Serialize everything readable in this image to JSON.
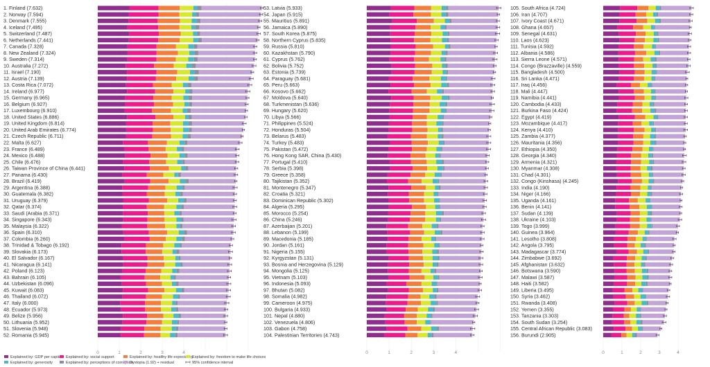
{
  "chart_data": {
    "type": "stacked-horizontal-bar",
    "title": "",
    "x_ticks": [
      "0",
      "1",
      "2",
      "3",
      "4"
    ],
    "components": [
      {
        "key": "gdp",
        "label": "Explained by: GDP per capita",
        "color": "#8e2d8e"
      },
      {
        "key": "social",
        "label": "Explained by: social support",
        "color": "#ec1a8a"
      },
      {
        "key": "health",
        "label": "Explained by: healthy life expectancy",
        "color": "#f47d3b"
      },
      {
        "key": "freedom",
        "label": "Explained by: freedom to make life choices",
        "color": "#d8e82c"
      },
      {
        "key": "generosity",
        "label": "Explained by: generosity",
        "color": "#4bb8c9"
      },
      {
        "key": "corruption",
        "label": "Explained by: perceptions of corruption",
        "color": "#8d8d9e"
      },
      {
        "key": "dystopia",
        "label": "Dystopia (1.92) + residual",
        "color": "#c3a4d6"
      }
    ],
    "ci_label": "95% confidence interval",
    "countries": [
      [
        "Finland",
        "7.632"
      ],
      [
        "Norway",
        "7.594"
      ],
      [
        "Denmark",
        "7.555"
      ],
      [
        "Iceland",
        "7.495"
      ],
      [
        "Switzerland",
        "7.487"
      ],
      [
        "Netherlands",
        "7.441"
      ],
      [
        "Canada",
        "7.328"
      ],
      [
        "New Zealand",
        "7.324"
      ],
      [
        "Sweden",
        "7.314"
      ],
      [
        "Australia",
        "7.272"
      ],
      [
        "Israel",
        "7.190"
      ],
      [
        "Austria",
        "7.139"
      ],
      [
        "Costa Rica",
        "7.072"
      ],
      [
        "Ireland",
        "6.977"
      ],
      [
        "Germany",
        "6.965"
      ],
      [
        "Belgium",
        "6.927"
      ],
      [
        "Luxembourg",
        "6.910"
      ],
      [
        "United States",
        "6.886"
      ],
      [
        "United Kingdom",
        "6.814"
      ],
      [
        "United Arab Emirates",
        "6.774"
      ],
      [
        "Czech Republic",
        "6.711"
      ],
      [
        "Malta",
        "6.627"
      ],
      [
        "France",
        "6.489"
      ],
      [
        "Mexico",
        "6.488"
      ],
      [
        "Chile",
        "6.476"
      ],
      [
        "Taiwan Province of China",
        "6.441"
      ],
      [
        "Panama",
        "6.430"
      ],
      [
        "Brazil",
        "6.419"
      ],
      [
        "Argentina",
        "6.388"
      ],
      [
        "Guatemala",
        "6.382"
      ],
      [
        "Uruguay",
        "6.379"
      ],
      [
        "Qatar",
        "6.374"
      ],
      [
        "Saudi (Arabia",
        "6.371"
      ],
      [
        "Singapore",
        "6.343"
      ],
      [
        "Malaysia",
        "6.322"
      ],
      [
        "Spain",
        "6.310"
      ],
      [
        "Colombia",
        "6.260"
      ],
      [
        "Trinidad & Tobago",
        "6.192"
      ],
      [
        "Slovakia",
        "6.173"
      ],
      [
        "El Salvador",
        "6.167"
      ],
      [
        "Nicaragua",
        "6.141"
      ],
      [
        "Poland",
        "6.123"
      ],
      [
        "Bahrain",
        "6.105"
      ],
      [
        "Uzbekistan",
        "6.096"
      ],
      [
        "Kuwait",
        "6.083"
      ],
      [
        "Thailand",
        "6.072"
      ],
      [
        "Italy",
        "6.000"
      ],
      [
        "Ecuador",
        "5.973"
      ],
      [
        "Belize",
        "5.956"
      ],
      [
        "Lithuania",
        "5.952"
      ],
      [
        "Slovenia",
        "5.948"
      ],
      [
        "Romania",
        "5.945"
      ],
      [
        "Latvia",
        "5.933"
      ],
      [
        "Japan",
        "5.915"
      ],
      [
        "Mauritius",
        "5.891"
      ],
      [
        "Jamaica",
        "5.890"
      ],
      [
        "South Korea",
        "5.875"
      ],
      [
        "Northern Cyprus",
        "5.835"
      ],
      [
        "Russia",
        "5.810"
      ],
      [
        "Kazakhstan",
        "5.790"
      ],
      [
        "Cyprus",
        "5.762"
      ],
      [
        "Bolivia",
        "5.752"
      ],
      [
        "Estonia",
        "5.739"
      ],
      [
        "Paraguay",
        "5.681"
      ],
      [
        "Peru",
        "5.663"
      ],
      [
        "Kosovo",
        "5.662"
      ],
      [
        "Moldova",
        "5.640"
      ],
      [
        "Turkmenistan",
        "5.636"
      ],
      [
        "Hungary",
        "5.620"
      ],
      [
        "Libya",
        "5.566"
      ],
      [
        "Philippines",
        "5.524"
      ],
      [
        "Honduras",
        "5.504"
      ],
      [
        "Belarus",
        "5.483"
      ],
      [
        "Turkey",
        "5.483"
      ],
      [
        "Pakistan",
        "5.472"
      ],
      [
        "Hong Kong SAR, China",
        "5.430"
      ],
      [
        "Portugal",
        "5.410"
      ],
      [
        "Serbia",
        "5.398"
      ],
      [
        "Greece",
        "5.358"
      ],
      [
        "Tajikistan",
        "5.352"
      ],
      [
        "Montenegro",
        "5.347"
      ],
      [
        "Croatia",
        "5.321"
      ],
      [
        "Dominican Republic",
        "5.302"
      ],
      [
        "Algeria",
        "5.295"
      ],
      [
        "Morocco",
        "5.254"
      ],
      [
        "China",
        "5.246"
      ],
      [
        "Azerbaijan",
        "5.201"
      ],
      [
        "Lebanon",
        "5.199"
      ],
      [
        "Macedonia",
        "5.185"
      ],
      [
        "Jordan",
        "5.161"
      ],
      [
        "Nigeria",
        "5.155"
      ],
      [
        "Kyrgyzstan",
        "5.131"
      ],
      [
        "Bosnia and Herzegovina",
        "5.129"
      ],
      [
        "Mongolia",
        "5.125"
      ],
      [
        "Vietnam",
        "5.103"
      ],
      [
        "Indonesia",
        "5.093"
      ],
      [
        "Bhutan",
        "5.082"
      ],
      [
        "Somalia",
        "4.982"
      ],
      [
        "Cameroon",
        "4.975"
      ],
      [
        "Bulgaria",
        "4.933"
      ],
      [
        "Nepal",
        "4.880"
      ],
      [
        "Venezuela",
        "4.806"
      ],
      [
        "Gabon",
        "4.758"
      ],
      [
        "Palestinian Territories",
        "4.743"
      ],
      [
        "South Africa",
        "4.724"
      ],
      [
        "Iran",
        "4.707"
      ],
      [
        "Ivory Coast",
        "4.671"
      ],
      [
        "Ghana",
        "4.657"
      ],
      [
        "Senegal",
        "4.631"
      ],
      [
        "Laos",
        "4.623"
      ],
      [
        "Tunisia",
        "4.592"
      ],
      [
        "Albania",
        "4.586"
      ],
      [
        "Sierra Leone",
        "4.571"
      ],
      [
        "Congo (Brazzaville)",
        "4.559"
      ],
      [
        "Bangladesh",
        "4.500"
      ],
      [
        "Sri Lanka",
        "4.471"
      ],
      [
        "Iraq",
        "4.456"
      ],
      [
        "Mali",
        "4.447"
      ],
      [
        "Namibia",
        "4.441"
      ],
      [
        "Cambodia",
        "4.433"
      ],
      [
        "Burkina Faso",
        "4.424"
      ],
      [
        "Egypt",
        "4.419"
      ],
      [
        "Mozambique",
        "4.417"
      ],
      [
        "Kenya",
        "4.410"
      ],
      [
        "Zambia",
        "4.377"
      ],
      [
        "Mauritania",
        "4.356"
      ],
      [
        "Ethiopia",
        "4.350"
      ],
      [
        "Georgia",
        "4.340"
      ],
      [
        "Armenia",
        "4.321"
      ],
      [
        "Myanmar",
        "4.308"
      ],
      [
        "Chad",
        "4.301"
      ],
      [
        "Congo (Kinshasa)",
        "4.245"
      ],
      [
        "India",
        "4.190"
      ],
      [
        "Niger",
        "4.166"
      ],
      [
        "Uganda",
        "4.161"
      ],
      [
        "Benin",
        "4.141"
      ],
      [
        "Sudan",
        "4.139"
      ],
      [
        "Ukraine",
        "4.103"
      ],
      [
        "Togo",
        "3.999"
      ],
      [
        "Guinea",
        "3.964"
      ],
      [
        "Lesotho",
        "3.808"
      ],
      [
        "Angola",
        "3.795"
      ],
      [
        "Madagascar",
        "3.774"
      ],
      [
        "Zimbabwe",
        "3.692"
      ],
      [
        "Afghanistan",
        "3.632"
      ],
      [
        "Botswana",
        "3.590"
      ],
      [
        "Malawi",
        "3.587"
      ],
      [
        "Haiti",
        "3.582"
      ],
      [
        "Liberia",
        "3.495"
      ],
      [
        "Syria",
        "3.462"
      ],
      [
        "Rwanda",
        "3.408"
      ],
      [
        "Yemen",
        "3.355"
      ],
      [
        "Tanzania",
        "3.303"
      ],
      [
        "South Sudan",
        "3.254"
      ],
      [
        "Central African Republic",
        "3.083"
      ],
      [
        "Burundi",
        "2.905"
      ]
    ]
  }
}
